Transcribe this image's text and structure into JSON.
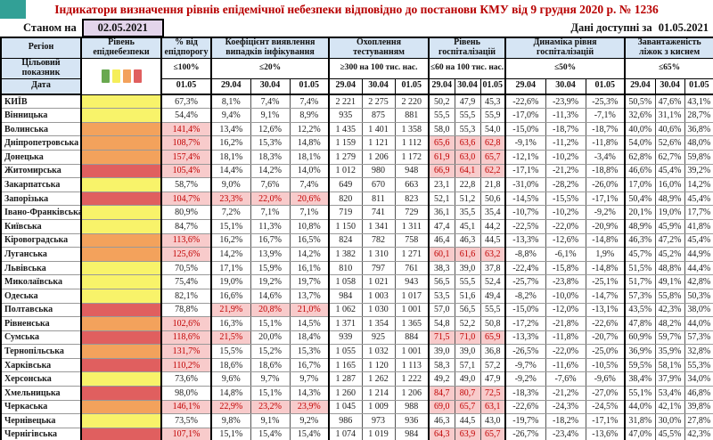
{
  "title": "Індикатори визначення рівнів епідемічної небезпеки відповідно до постанови КМУ від 9 грудня 2020 р. № 1236",
  "as_of_label": "Станом на",
  "as_of_date": "02.05.2021",
  "available_label": "Дані доступні за",
  "available_date": "01.05.2021",
  "colors": {
    "title_color": "#b80000",
    "corner": "#32a096",
    "header_bg": "#d6e5f4",
    "date_box_bg": "#e3d5eb",
    "hl_bg": "#f8cbcb",
    "hl_text": "#c00000",
    "row_line": "#999999",
    "level_yellow": "#f8f36a",
    "level_orange": "#f3a25c",
    "level_red": "#e05f5f"
  },
  "legend_colors": [
    "#69a84f",
    "#f5ee5a",
    "#f3a25c",
    "#e05f5f"
  ],
  "header": {
    "region_label": "Регіон",
    "target_row_label": "Цільовий показник",
    "date_row_label": "Дата"
  },
  "columns": [
    {
      "key": "level",
      "label": "Рівень епіднебезпеки",
      "target": "",
      "dates": []
    },
    {
      "key": "pct",
      "label": "% від епідпорогу",
      "target": "≤100%",
      "dates": [
        "01.05"
      ]
    },
    {
      "key": "coef",
      "label": "Коефіцієнт виявлення випадків інфікування",
      "target": "≤20%",
      "dates": [
        "29.04",
        "30.04",
        "01.05"
      ]
    },
    {
      "key": "test",
      "label": "Охоплення тестуванням",
      "target": "≥300 на 100 тис. нас.",
      "dates": [
        "29.04",
        "30.04",
        "01.05"
      ]
    },
    {
      "key": "hosp",
      "label": "Рівень госпіталізацій",
      "target": "≤60 на 100 тис. нас.",
      "dates": [
        "29.04",
        "30.04",
        "01.05"
      ]
    },
    {
      "key": "dyn",
      "label": "Динаміка рівня госпіталізацій",
      "target": "≤50%",
      "dates": [
        "29.04",
        "30.04",
        "01.05"
      ]
    },
    {
      "key": "beds",
      "label": "Завантаженість ліжок з киснем",
      "target": "≤65%",
      "dates": [
        "29.04",
        "30.04",
        "01.05"
      ]
    }
  ],
  "chart_data": {
    "type": "table",
    "title": "Індикатори визначення рівнів епідемічної небезпеки відповідно до постанови КМУ від 9 грудня 2020 р. № 1236",
    "columns": [
      "Регіон",
      "Рівень епіднебезпеки",
      "% від епідпорогу 01.05",
      "Коефіцієнт виявлення 29.04/30.04/01.05",
      "Охоплення тестуванням 29.04/30.04/01.05",
      "Рівень госпіталізацій 29.04/30.04/01.05",
      "Динаміка рівня госпіталізацій 29.04/30.04/01.05",
      "Завантаженість ліжок з киснем 29.04/30.04/01.05"
    ]
  },
  "rows": [
    {
      "region": "КИЇВ",
      "level": "yellow",
      "pct": "67,3%",
      "coef": [
        "8,1%",
        "7,4%",
        "7,4%"
      ],
      "test": [
        "2 221",
        "2 275",
        "2 220"
      ],
      "hosp": [
        "50,2",
        "47,9",
        "45,3"
      ],
      "dyn": [
        "-22,6%",
        "-23,9%",
        "-25,3%"
      ],
      "beds": [
        "50,5%",
        "47,6%",
        "43,1%"
      ]
    },
    {
      "region": "Вінницька",
      "level": "yellow",
      "pct": "54,4%",
      "coef": [
        "9,4%",
        "9,1%",
        "8,9%"
      ],
      "test": [
        "935",
        "875",
        "881"
      ],
      "hosp": [
        "55,5",
        "55,5",
        "55,9"
      ],
      "dyn": [
        "-17,0%",
        "-11,3%",
        "-7,1%"
      ],
      "beds": [
        "32,6%",
        "31,1%",
        "28,7%"
      ]
    },
    {
      "region": "Волинська",
      "level": "orange",
      "pct": "141,4%",
      "coef": [
        "13,4%",
        "12,6%",
        "12,2%"
      ],
      "test": [
        "1 435",
        "1 401",
        "1 358"
      ],
      "hosp": [
        "58,0",
        "55,3",
        "54,0"
      ],
      "dyn": [
        "-15,0%",
        "-18,7%",
        "-18,7%"
      ],
      "beds": [
        "40,0%",
        "40,6%",
        "36,8%"
      ]
    },
    {
      "region": "Дніпропетровська",
      "level": "orange",
      "pct": "108,7%",
      "coef": [
        "16,2%",
        "15,3%",
        "14,8%"
      ],
      "test": [
        "1 159",
        "1 121",
        "1 112"
      ],
      "hosp": [
        "65,6",
        "63,6",
        "62,8"
      ],
      "dyn": [
        "-9,1%",
        "-11,2%",
        "-11,8%"
      ],
      "beds": [
        "54,0%",
        "52,6%",
        "48,0%"
      ]
    },
    {
      "region": "Донецька",
      "level": "orange",
      "pct": "157,4%",
      "coef": [
        "18,1%",
        "18,3%",
        "18,1%"
      ],
      "test": [
        "1 279",
        "1 206",
        "1 172"
      ],
      "hosp": [
        "61,9",
        "63,0",
        "65,7"
      ],
      "dyn": [
        "-12,1%",
        "-10,2%",
        "-3,4%"
      ],
      "beds": [
        "62,8%",
        "62,7%",
        "59,8%"
      ]
    },
    {
      "region": "Житомирська",
      "level": "red",
      "pct": "105,4%",
      "coef": [
        "14,4%",
        "14,2%",
        "14,0%"
      ],
      "test": [
        "1 012",
        "980",
        "948"
      ],
      "hosp": [
        "66,9",
        "64,1",
        "62,2"
      ],
      "dyn": [
        "-17,1%",
        "-21,2%",
        "-18,8%"
      ],
      "beds": [
        "46,6%",
        "45,4%",
        "39,2%"
      ]
    },
    {
      "region": "Закарпатська",
      "level": "yellow",
      "pct": "58,7%",
      "coef": [
        "9,0%",
        "7,6%",
        "7,4%"
      ],
      "test": [
        "649",
        "670",
        "663"
      ],
      "hosp": [
        "23,1",
        "22,8",
        "21,8"
      ],
      "dyn": [
        "-31,0%",
        "-28,2%",
        "-26,0%"
      ],
      "beds": [
        "17,0%",
        "16,0%",
        "14,2%"
      ]
    },
    {
      "region": "Запорізька",
      "level": "red",
      "pct": "104,7%",
      "coef": [
        "23,3%",
        "22,0%",
        "20,6%"
      ],
      "test": [
        "820",
        "811",
        "823"
      ],
      "hosp": [
        "52,1",
        "51,2",
        "50,6"
      ],
      "dyn": [
        "-14,5%",
        "-15,5%",
        "-17,1%"
      ],
      "beds": [
        "50,4%",
        "48,9%",
        "45,4%"
      ]
    },
    {
      "region": "Івано-Франківська",
      "level": "yellow",
      "pct": "80,9%",
      "coef": [
        "7,2%",
        "7,1%",
        "7,1%"
      ],
      "test": [
        "719",
        "741",
        "729"
      ],
      "hosp": [
        "36,1",
        "35,5",
        "35,4"
      ],
      "dyn": [
        "-10,7%",
        "-10,2%",
        "-9,2%"
      ],
      "beds": [
        "20,1%",
        "19,0%",
        "17,7%"
      ]
    },
    {
      "region": "Київська",
      "level": "yellow",
      "pct": "84,7%",
      "coef": [
        "15,1%",
        "11,3%",
        "10,8%"
      ],
      "test": [
        "1 150",
        "1 341",
        "1 311"
      ],
      "hosp": [
        "47,4",
        "45,1",
        "44,2"
      ],
      "dyn": [
        "-22,5%",
        "-22,0%",
        "-20,9%"
      ],
      "beds": [
        "48,9%",
        "45,9%",
        "41,8%"
      ]
    },
    {
      "region": "Кіровоградська",
      "level": "orange",
      "pct": "113,6%",
      "coef": [
        "16,2%",
        "16,7%",
        "16,5%"
      ],
      "test": [
        "824",
        "782",
        "758"
      ],
      "hosp": [
        "46,4",
        "46,3",
        "44,5"
      ],
      "dyn": [
        "-13,3%",
        "-12,6%",
        "-14,8%"
      ],
      "beds": [
        "46,3%",
        "47,2%",
        "45,4%"
      ]
    },
    {
      "region": "Луганська",
      "level": "orange",
      "pct": "125,6%",
      "coef": [
        "14,2%",
        "13,9%",
        "14,2%"
      ],
      "test": [
        "1 382",
        "1 310",
        "1 271"
      ],
      "hosp": [
        "60,1",
        "61,6",
        "63,2"
      ],
      "dyn": [
        "-8,8%",
        "-6,1%",
        "1,9%"
      ],
      "beds": [
        "45,7%",
        "45,2%",
        "44,9%"
      ]
    },
    {
      "region": "Львівська",
      "level": "yellow",
      "pct": "70,5%",
      "coef": [
        "17,1%",
        "15,9%",
        "16,1%"
      ],
      "test": [
        "810",
        "797",
        "761"
      ],
      "hosp": [
        "38,3",
        "39,0",
        "37,8"
      ],
      "dyn": [
        "-22,4%",
        "-15,8%",
        "-14,8%"
      ],
      "beds": [
        "51,5%",
        "48,8%",
        "44,4%"
      ]
    },
    {
      "region": "Миколаївська",
      "level": "yellow",
      "pct": "75,4%",
      "coef": [
        "19,0%",
        "19,2%",
        "19,7%"
      ],
      "test": [
        "1 058",
        "1 021",
        "943"
      ],
      "hosp": [
        "56,5",
        "55,5",
        "52,4"
      ],
      "dyn": [
        "-25,7%",
        "-23,8%",
        "-25,1%"
      ],
      "beds": [
        "51,7%",
        "49,1%",
        "42,8%"
      ]
    },
    {
      "region": "Одеська",
      "level": "yellow",
      "pct": "82,1%",
      "coef": [
        "16,6%",
        "14,6%",
        "13,7%"
      ],
      "test": [
        "984",
        "1 003",
        "1 017"
      ],
      "hosp": [
        "53,5",
        "51,6",
        "49,4"
      ],
      "dyn": [
        "-8,2%",
        "-10,0%",
        "-14,7%"
      ],
      "beds": [
        "57,3%",
        "55,8%",
        "50,3%"
      ]
    },
    {
      "region": "Полтавська",
      "level": "red",
      "pct": "78,8%",
      "coef": [
        "21,9%",
        "20,8%",
        "21,0%"
      ],
      "test": [
        "1 062",
        "1 030",
        "1 001"
      ],
      "hosp": [
        "57,0",
        "56,5",
        "55,5"
      ],
      "dyn": [
        "-15,0%",
        "-12,0%",
        "-13,1%"
      ],
      "beds": [
        "43,5%",
        "42,3%",
        "38,0%"
      ]
    },
    {
      "region": "Рівненська",
      "level": "orange",
      "pct": "102,6%",
      "coef": [
        "16,3%",
        "15,1%",
        "14,5%"
      ],
      "test": [
        "1 371",
        "1 354",
        "1 365"
      ],
      "hosp": [
        "54,8",
        "52,2",
        "50,8"
      ],
      "dyn": [
        "-17,2%",
        "-21,8%",
        "-22,6%"
      ],
      "beds": [
        "47,8%",
        "48,2%",
        "44,0%"
      ]
    },
    {
      "region": "Сумська",
      "level": "red",
      "pct": "118,6%",
      "coef": [
        "21,5%",
        "20,0%",
        "18,4%"
      ],
      "test": [
        "939",
        "925",
        "884"
      ],
      "hosp": [
        "71,5",
        "71,0",
        "65,9"
      ],
      "dyn": [
        "-13,3%",
        "-11,8%",
        "-20,7%"
      ],
      "beds": [
        "60,9%",
        "59,7%",
        "57,3%"
      ]
    },
    {
      "region": "Тернопільська",
      "level": "orange",
      "pct": "131,7%",
      "coef": [
        "15,5%",
        "15,2%",
        "15,3%"
      ],
      "test": [
        "1 055",
        "1 032",
        "1 001"
      ],
      "hosp": [
        "39,0",
        "39,0",
        "36,8"
      ],
      "dyn": [
        "-26,5%",
        "-22,0%",
        "-25,0%"
      ],
      "beds": [
        "36,9%",
        "35,9%",
        "32,8%"
      ]
    },
    {
      "region": "Харківська",
      "level": "red",
      "pct": "110,2%",
      "coef": [
        "18,6%",
        "18,6%",
        "16,7%"
      ],
      "test": [
        "1 165",
        "1 120",
        "1 113"
      ],
      "hosp": [
        "58,3",
        "57,1",
        "57,2"
      ],
      "dyn": [
        "-9,7%",
        "-11,6%",
        "-10,5%"
      ],
      "beds": [
        "59,5%",
        "58,1%",
        "55,3%"
      ]
    },
    {
      "region": "Херсонська",
      "level": "yellow",
      "pct": "73,6%",
      "coef": [
        "9,6%",
        "9,7%",
        "9,7%"
      ],
      "test": [
        "1 287",
        "1 262",
        "1 222"
      ],
      "hosp": [
        "49,2",
        "49,0",
        "47,9"
      ],
      "dyn": [
        "-9,2%",
        "-7,6%",
        "-9,6%"
      ],
      "beds": [
        "38,4%",
        "37,9%",
        "34,0%"
      ]
    },
    {
      "region": "Хмельницька",
      "level": "red",
      "pct": "98,0%",
      "coef": [
        "14,8%",
        "15,1%",
        "14,3%"
      ],
      "test": [
        "1 260",
        "1 214",
        "1 206"
      ],
      "hosp": [
        "84,7",
        "80,7",
        "72,5"
      ],
      "dyn": [
        "-18,3%",
        "-21,2%",
        "-27,0%"
      ],
      "beds": [
        "55,1%",
        "53,4%",
        "46,8%"
      ]
    },
    {
      "region": "Черкаська",
      "level": "orange",
      "pct": "146,1%",
      "coef": [
        "22,9%",
        "23,2%",
        "23,9%"
      ],
      "test": [
        "1 045",
        "1 009",
        "988"
      ],
      "hosp": [
        "69,0",
        "65,7",
        "63,1"
      ],
      "dyn": [
        "-22,6%",
        "-24,3%",
        "-24,5%"
      ],
      "beds": [
        "44,0%",
        "42,1%",
        "39,8%"
      ]
    },
    {
      "region": "Чернівецька",
      "level": "yellow",
      "pct": "73,5%",
      "coef": [
        "9,8%",
        "9,1%",
        "9,2%"
      ],
      "test": [
        "986",
        "973",
        "936"
      ],
      "hosp": [
        "46,3",
        "44,5",
        "43,0"
      ],
      "dyn": [
        "-19,7%",
        "-18,2%",
        "-17,1%"
      ],
      "beds": [
        "31,8%",
        "30,0%",
        "27,8%"
      ]
    },
    {
      "region": "Чернігівська",
      "level": "red",
      "pct": "107,1%",
      "coef": [
        "15,1%",
        "15,4%",
        "15,4%"
      ],
      "test": [
        "1 074",
        "1 019",
        "984"
      ],
      "hosp": [
        "64,3",
        "63,9",
        "65,7"
      ],
      "dyn": [
        "-26,7%",
        "-23,4%",
        "-13,6%"
      ],
      "beds": [
        "47,0%",
        "45,5%",
        "42,3%"
      ]
    }
  ]
}
